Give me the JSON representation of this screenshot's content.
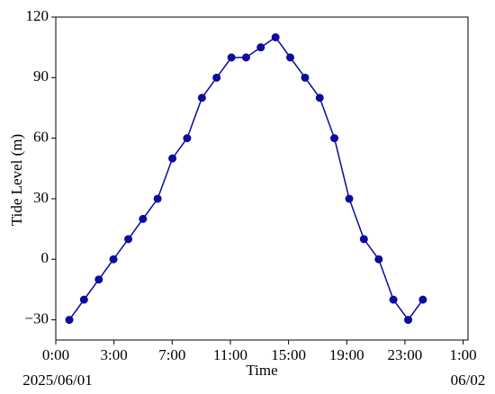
{
  "chart_data": {
    "type": "line",
    "x_label": "Time",
    "y_label": "Tide Level (m)",
    "annotations": [
      "2025/06/01",
      "06/02"
    ],
    "x": [
      0.83,
      1.73,
      2.64,
      3.54,
      4.45,
      5.35,
      6.25,
      7.16,
      8.06,
      8.97,
      9.87,
      10.78,
      11.68,
      12.58,
      13.49,
      14.39,
      15.3,
      16.2,
      17.1,
      18.01,
      18.91,
      19.82,
      20.72,
      21.63,
      22.53
    ],
    "series": [
      {
        "color": "#0b0b9e",
        "values": [
          -30,
          -20,
          -10,
          0,
          10,
          20,
          30,
          50,
          60,
          80,
          90,
          100,
          100,
          105,
          110,
          100,
          90,
          80,
          60,
          30,
          10,
          0,
          -20,
          -30,
          -20
        ]
      }
    ],
    "xlim": [
      0,
      25.3
    ],
    "xticks": [
      {
        "value": 0,
        "label": "0:00"
      },
      {
        "value": 3.571,
        "label": "3:00"
      },
      {
        "value": 7.143,
        "label": "7:00"
      },
      {
        "value": 10.714,
        "label": "11:00"
      },
      {
        "value": 14.286,
        "label": "15:00"
      },
      {
        "value": 17.857,
        "label": "19:00"
      },
      {
        "value": 21.429,
        "label": "23:00"
      },
      {
        "value": 25,
        "label": "1:00"
      }
    ],
    "ylim": [
      -40,
      120
    ],
    "yticks": [
      {
        "value": -30,
        "label": "−30"
      },
      0,
      30,
      60,
      90,
      120
    ],
    "grid": false
  }
}
